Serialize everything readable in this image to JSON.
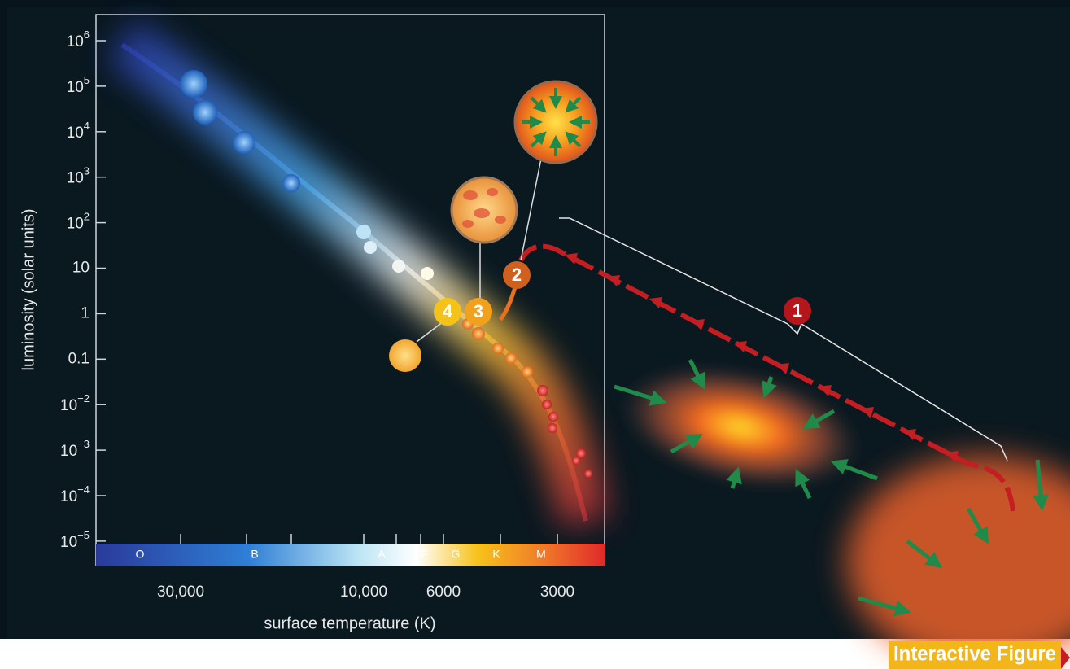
{
  "figure": {
    "y_axis": {
      "label": "luminosity (solar units)",
      "ticks": [
        {
          "base": "10",
          "exponent": "6"
        },
        {
          "base": "10",
          "exponent": "5"
        },
        {
          "base": "10",
          "exponent": "4"
        },
        {
          "base": "10",
          "exponent": "3"
        },
        {
          "base": "10",
          "exponent": "2"
        },
        "10",
        "1",
        "0.1",
        {
          "base": "10",
          "exponent": "−2"
        },
        {
          "base": "10",
          "exponent": "−3"
        },
        {
          "base": "10",
          "exponent": "−4"
        },
        {
          "base": "10",
          "exponent": "−5"
        }
      ]
    },
    "x_axis": {
      "label": "surface temperature (K)",
      "ticks": [
        "30,000",
        "10,000",
        "6000",
        "3000"
      ]
    },
    "spectral_classes": [
      "O",
      "B",
      "A",
      "F",
      "G",
      "K",
      "M"
    ],
    "steps": [
      "1",
      "2",
      "3",
      "4"
    ],
    "badge": "Interactive Figure"
  }
}
